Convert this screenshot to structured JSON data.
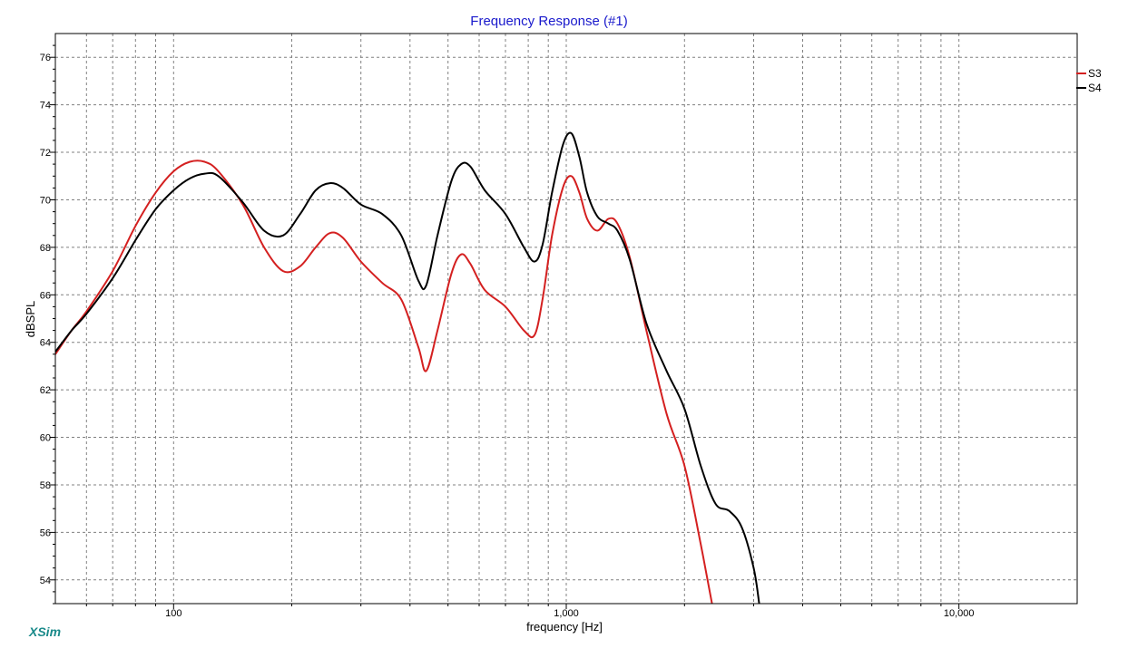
{
  "app_name": "XSim",
  "colors": {
    "title": "#1a1acc",
    "app_name": "#1a8a8a",
    "grid": "#808080",
    "frame": "#000000"
  },
  "chart_data": {
    "type": "line",
    "title": "Frequency Response (#1)",
    "xlabel": "frequency [Hz]",
    "ylabel": "dBSPL",
    "xscale": "log",
    "xlim": [
      50,
      20000
    ],
    "ylim": [
      53,
      77
    ],
    "x_ticks": [
      100,
      1000,
      10000
    ],
    "x_tick_labels": [
      "100",
      "1,000",
      "10,000"
    ],
    "y_ticks": [
      54,
      56,
      58,
      60,
      62,
      64,
      66,
      68,
      70,
      72,
      74,
      76
    ],
    "y_tick_labels": [
      "54",
      "56",
      "58",
      "60",
      "62",
      "64",
      "66",
      "68",
      "70",
      "72",
      "74",
      "76"
    ],
    "grid": true,
    "legend_position": "right",
    "series": [
      {
        "name": "S3",
        "color": "#d42020",
        "x": [
          50,
          55,
          60,
          70,
          80,
          90,
          100,
          110,
          120,
          130,
          150,
          170,
          190,
          210,
          230,
          250,
          270,
          300,
          340,
          380,
          420,
          440,
          470,
          510,
          540,
          570,
          620,
          700,
          780,
          830,
          870,
          920,
          980,
          1030,
          1080,
          1130,
          1200,
          1280,
          1350,
          1450,
          1600,
          1800,
          2000,
          2200,
          2350
        ],
        "y": [
          63.5,
          64.5,
          65.3,
          67.0,
          68.9,
          70.3,
          71.2,
          71.6,
          71.6,
          71.2,
          69.8,
          68.0,
          67.0,
          67.2,
          68.0,
          68.6,
          68.4,
          67.4,
          66.5,
          65.8,
          63.8,
          62.8,
          64.5,
          66.9,
          67.7,
          67.3,
          66.2,
          65.5,
          64.5,
          64.3,
          65.8,
          68.5,
          70.5,
          71.0,
          70.3,
          69.2,
          68.7,
          69.2,
          69.0,
          67.6,
          64.5,
          61.0,
          58.8,
          55.5,
          53.0
        ]
      },
      {
        "name": "S4",
        "color": "#000000",
        "x": [
          50,
          55,
          60,
          70,
          80,
          90,
          100,
          110,
          120,
          130,
          150,
          170,
          190,
          210,
          230,
          250,
          270,
          300,
          340,
          380,
          420,
          440,
          470,
          510,
          540,
          570,
          620,
          700,
          780,
          830,
          870,
          920,
          980,
          1030,
          1080,
          1130,
          1200,
          1280,
          1350,
          1450,
          1600,
          1800,
          2000,
          2200,
          2400,
          2600,
          2800,
          3000,
          3100
        ],
        "y": [
          63.6,
          64.5,
          65.2,
          66.7,
          68.3,
          69.6,
          70.4,
          70.9,
          71.1,
          71.0,
          69.9,
          68.7,
          68.5,
          69.4,
          70.4,
          70.7,
          70.5,
          69.8,
          69.4,
          68.5,
          66.6,
          66.4,
          68.5,
          70.8,
          71.5,
          71.4,
          70.4,
          69.4,
          68.0,
          67.4,
          68.1,
          70.3,
          72.3,
          72.8,
          71.8,
          70.3,
          69.3,
          69.0,
          68.7,
          67.5,
          64.8,
          62.8,
          61.2,
          58.8,
          57.2,
          56.9,
          56.2,
          54.5,
          53.0
        ]
      }
    ]
  }
}
